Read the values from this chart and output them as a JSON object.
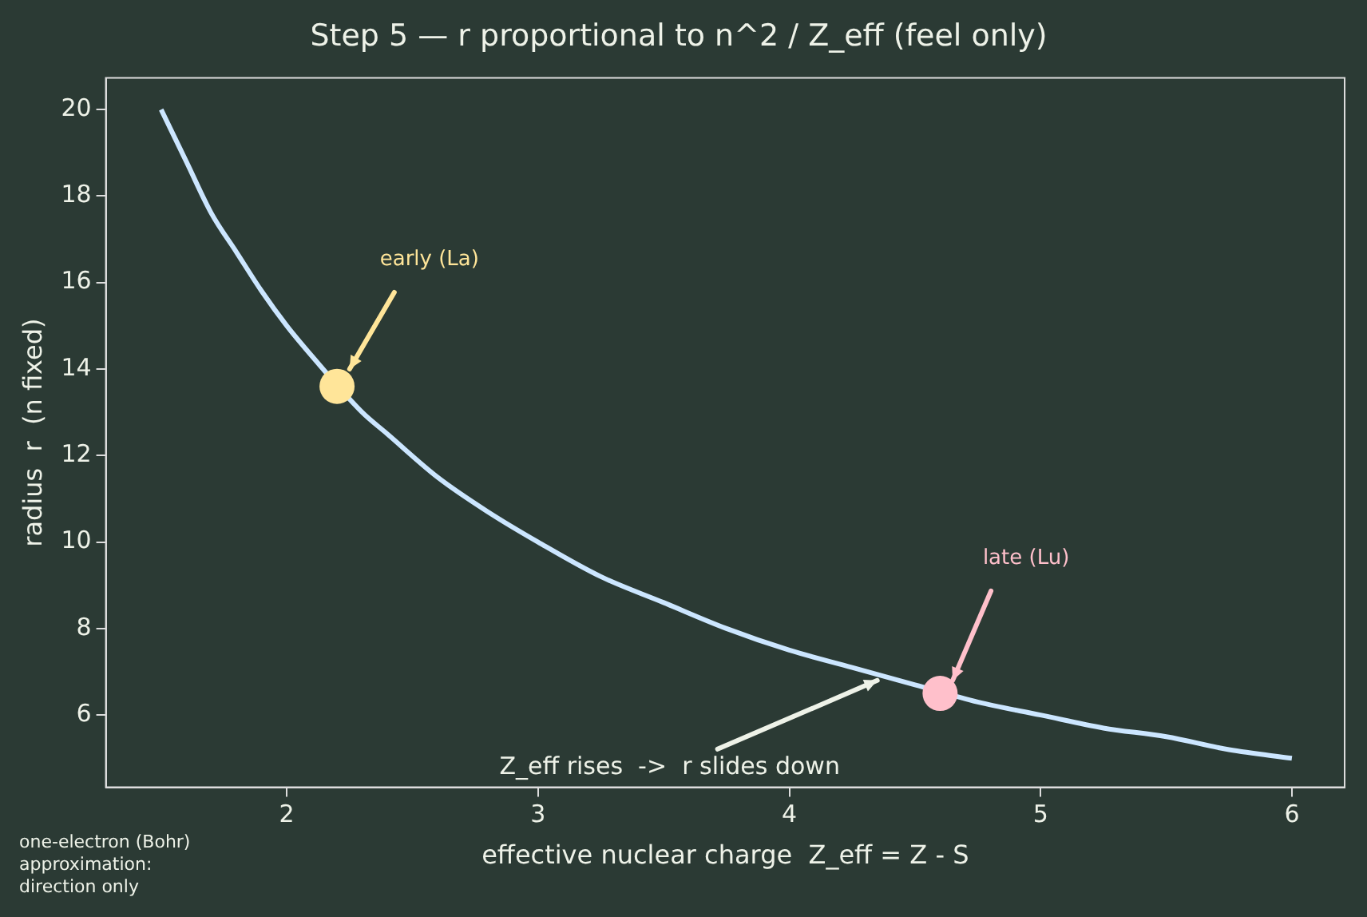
{
  "chart_data": {
    "type": "line",
    "title": "Step 5 — r proportional to n^2 / Z_eff (feel only)",
    "xlabel": "effective nuclear charge  Z_eff = Z - S",
    "ylabel": "radius  r  (n fixed)",
    "xlim": [
      1.28,
      6.21
    ],
    "xticks": [
      2,
      3,
      4,
      5,
      6
    ],
    "ylim": [
      4.33,
      20.73
    ],
    "yticks": [
      6,
      8,
      10,
      12,
      14,
      16,
      18,
      20
    ],
    "grid": false,
    "legend": false,
    "series": [
      {
        "color": "#cce6ff",
        "marker": "none",
        "x": [
          1.5,
          1.6,
          1.7,
          1.8,
          1.9,
          2,
          2.1,
          2.3,
          2.4,
          2.6,
          2.8,
          3,
          3.25,
          3.5,
          3.75,
          4,
          4.25,
          4.5,
          4.75,
          5,
          5.25,
          5.5,
          5.75,
          6
        ],
        "values": [
          20,
          18.8,
          17.6,
          16.7,
          15.8,
          15,
          14.3,
          13,
          12.5,
          11.5,
          10.7,
          10,
          9.2,
          8.6,
          8,
          7.5,
          7.1,
          6.7,
          6.3,
          6,
          5.7,
          5.5,
          5.2,
          5
        ]
      },
      {
        "type": "scatter",
        "color": "#ffe599",
        "marker": "circle",
        "x": [
          2.2
        ],
        "values": [
          13.6
        ]
      },
      {
        "type": "scatter",
        "color": "#ffc0cb",
        "marker": "circle",
        "x": [
          4.6
        ],
        "values": [
          6.5
        ]
      }
    ],
    "annotations": [
      {
        "text": "early (La)",
        "x": 2.25,
        "y": 14
      },
      {
        "text": "late (Lu)",
        "x": 4.65,
        "y": 6.8
      },
      {
        "text": "Z_eff rises  ->  r slides down",
        "x": 4.35,
        "y": 6.8
      },
      "one-electron (Bohr)\napproximation:\ndirection only"
    ]
  }
}
